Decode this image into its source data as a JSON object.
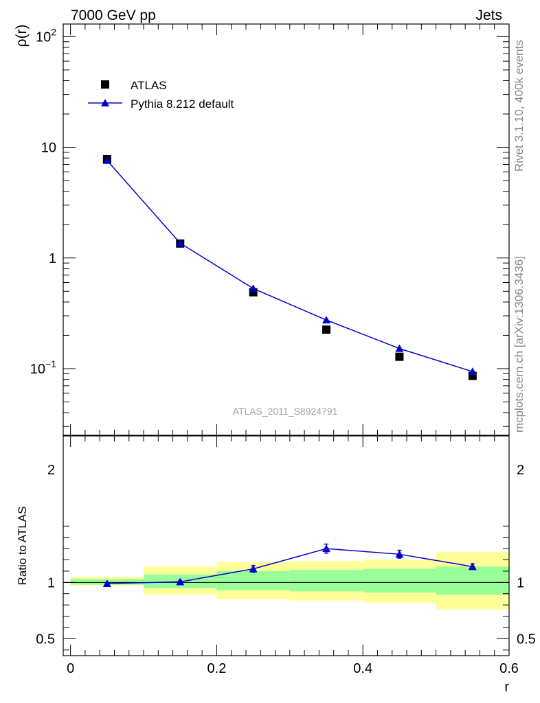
{
  "header": {
    "left": "7000 GeV pp",
    "right": "Jets"
  },
  "side_labels": {
    "rivet": "Rivet 3.1.10,  400k events",
    "mcplots": "mcplots.cern.ch [arXiv:1306.3436]"
  },
  "watermark": "ATLAS_2011_S8924791",
  "legend": {
    "data_label": "ATLAS",
    "mc_label": "Pythia 8.212 default"
  },
  "colors": {
    "data": "#000000",
    "mc": "#0000cc",
    "band_inner": "#99ff99",
    "band_outer": "#ffff99"
  },
  "chart_data": [
    {
      "type": "scatter",
      "name": "main",
      "ylabel": "ρ(r)",
      "yscale": "log",
      "ylim": [
        0.025,
        130
      ],
      "xlim": [
        -0.01,
        0.6
      ],
      "yticks": [
        {
          "value": 0.1,
          "base": "10",
          "exp": "−1"
        },
        {
          "value": 1,
          "base": "1",
          "exp": ""
        },
        {
          "value": 10,
          "base": "10",
          "exp": ""
        },
        {
          "value": 100,
          "base": "10",
          "exp": "2"
        }
      ],
      "x": [
        0.05,
        0.15,
        0.25,
        0.35,
        0.45,
        0.55
      ],
      "series": [
        {
          "name": "ATLAS",
          "marker": "square",
          "values": [
            7.8,
            1.35,
            0.49,
            0.225,
            0.128,
            0.086
          ]
        },
        {
          "name": "Pythia 8.212 default",
          "marker": "triangle",
          "values": [
            7.6,
            1.36,
            0.53,
            0.275,
            0.152,
            0.094
          ]
        }
      ]
    },
    {
      "type": "line",
      "name": "ratio",
      "ylabel": "Ratio to ATLAS",
      "ylim": [
        0.35,
        2.3
      ],
      "xlim": [
        -0.01,
        0.6
      ],
      "xlabel": "r",
      "xticks": [
        {
          "value": 0,
          "label": "0"
        },
        {
          "value": 0.2,
          "label": "0.2"
        },
        {
          "value": 0.4,
          "label": "0.4"
        },
        {
          "value": 0.6,
          "label": "0.6"
        }
      ],
      "yticks": [
        {
          "value": 0.5,
          "label": "0.5"
        },
        {
          "value": 1,
          "label": "1"
        },
        {
          "value": 2,
          "label": "2"
        }
      ],
      "x": [
        0.05,
        0.15,
        0.25,
        0.35,
        0.45,
        0.55
      ],
      "values": [
        0.99,
        1.005,
        1.12,
        1.3,
        1.25,
        1.14
      ],
      "errors": [
        0.01,
        0.012,
        0.03,
        0.04,
        0.035,
        0.025
      ],
      "bands": [
        {
          "x0": 0.0,
          "x1": 0.1,
          "inner": [
            0.98,
            1.03
          ],
          "outer": [
            0.97,
            1.05
          ]
        },
        {
          "x0": 0.1,
          "x1": 0.2,
          "inner": [
            0.95,
            1.07
          ],
          "outer": [
            0.89,
            1.14
          ]
        },
        {
          "x0": 0.2,
          "x1": 0.3,
          "inner": [
            0.93,
            1.1
          ],
          "outer": [
            0.85,
            1.18
          ]
        },
        {
          "x0": 0.3,
          "x1": 0.4,
          "inner": [
            0.92,
            1.11
          ],
          "outer": [
            0.84,
            1.19
          ]
        },
        {
          "x0": 0.4,
          "x1": 0.5,
          "inner": [
            0.91,
            1.12
          ],
          "outer": [
            0.82,
            1.2
          ]
        },
        {
          "x0": 0.5,
          "x1": 0.6,
          "inner": [
            0.89,
            1.14
          ],
          "outer": [
            0.76,
            1.27
          ]
        }
      ]
    }
  ]
}
